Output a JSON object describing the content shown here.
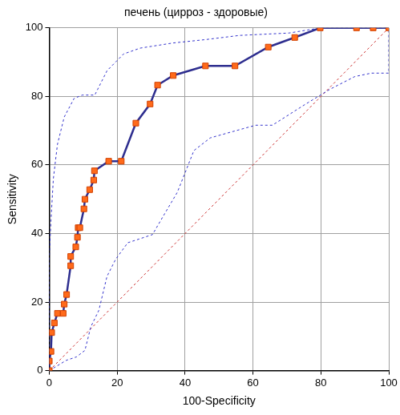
{
  "chart_data": {
    "type": "line",
    "title": "печень (цирроз - здоровые)",
    "x_label": "100-Specificity",
    "y_label": "Sensitivity",
    "xlim": [
      0,
      100
    ],
    "xticks": [
      0,
      20,
      40,
      60,
      80,
      100
    ],
    "ylim": [
      0,
      100
    ],
    "yticks": [
      0,
      20,
      40,
      60,
      80,
      100
    ],
    "grid": true,
    "series": [
      {
        "color": "#2e2e8f",
        "marker": "square",
        "line_style": "solid",
        "x": [
          0,
          0,
          0.5,
          0.7,
          1.5,
          2.4,
          4.1,
          4.4,
          5.1,
          6.3,
          6.3,
          7.8,
          8.3,
          8.5,
          9.0,
          10.2,
          10.5,
          11.9,
          13.1,
          13.3,
          17.5,
          21.2,
          25.5,
          29.7,
          31.9,
          36.5,
          46,
          54.7,
          64.5,
          72.3,
          79.8,
          90.5,
          95.4,
          100
        ],
        "values": [
          0,
          2.8,
          5.6,
          11.1,
          13.9,
          16.7,
          16.7,
          19.4,
          22.2,
          30.6,
          33.3,
          36.1,
          38.9,
          41.7,
          41.7,
          47.2,
          50,
          52.8,
          55.6,
          58.3,
          61.1,
          61.1,
          72.2,
          77.8,
          83.3,
          86.1,
          88.9,
          88.9,
          94.4,
          97.2,
          100,
          100,
          100,
          100
        ]
      },
      {
        "color": "#3333cc",
        "marker": "none",
        "line_style": "dashed",
        "x": [
          0,
          0,
          0.5,
          1.2,
          2.4,
          4.4,
          7.3,
          9.7,
          13.4,
          17,
          21.9,
          26.8,
          36.5,
          46.2,
          56,
          70.6,
          80,
          100
        ],
        "values": [
          0,
          33,
          44,
          56,
          66,
          74,
          79.4,
          80.4,
          80.4,
          87.5,
          92.4,
          94.1,
          95.6,
          96.6,
          97.8,
          98.5,
          100,
          100
        ]
      },
      {
        "color": "#3333cc",
        "marker": "none",
        "line_style": "dashed",
        "x": [
          0,
          5,
          8,
          10.5,
          12.2,
          14.6,
          17,
          19.5,
          23.1,
          26.8,
          30.4,
          34,
          37.7,
          42.6,
          47.4,
          53.5,
          60.8,
          65.7,
          75.4,
          82.7,
          90,
          94.9,
          100,
          100
        ],
        "values": [
          0,
          3,
          4,
          5.9,
          12.7,
          17.6,
          27.5,
          32.4,
          37.3,
          38.5,
          39.7,
          45.8,
          52,
          64.2,
          67.9,
          69.6,
          71.6,
          71.6,
          77.7,
          82.1,
          85.8,
          86.8,
          86.8,
          100
        ]
      },
      {
        "color": "#cc3333",
        "marker": "none",
        "line_style": "dashed",
        "x": [
          0,
          100
        ],
        "values": [
          0,
          100
        ]
      }
    ]
  }
}
